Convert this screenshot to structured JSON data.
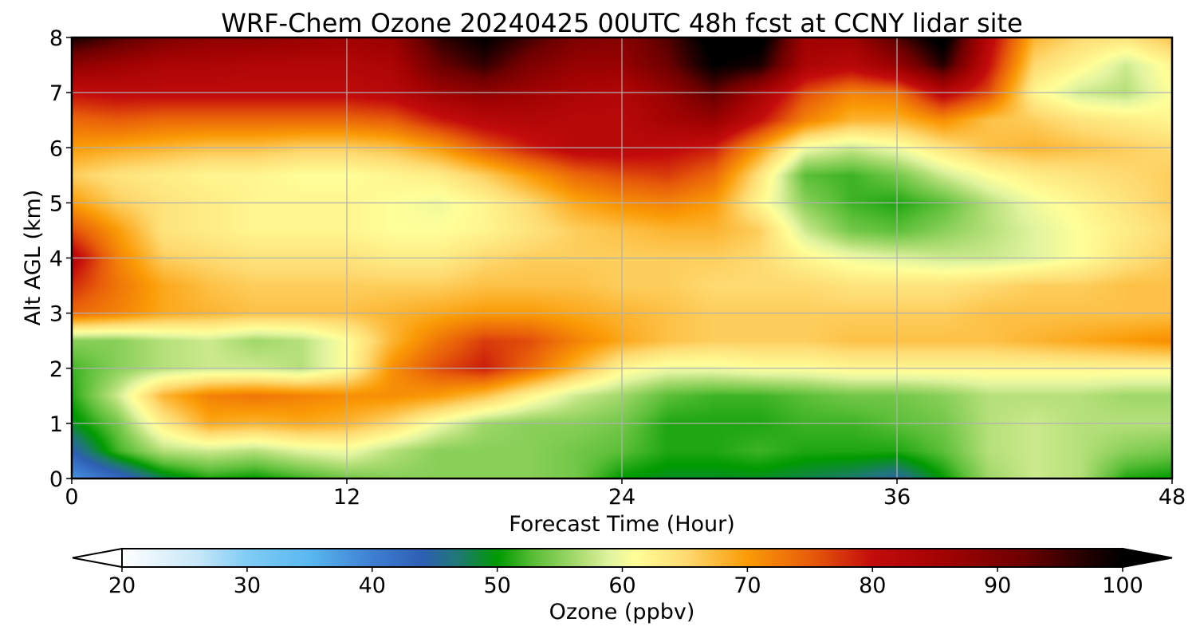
{
  "chart_data": {
    "type": "heatmap",
    "title": "WRF-Chem Ozone  20240425 00UTC 48h fcst at CCNY lidar site",
    "xlabel": "Forecast Time (Hour)",
    "ylabel": "Alt AGL (km)",
    "xlim": [
      0,
      48
    ],
    "ylim": [
      0,
      8
    ],
    "xticks": [
      0,
      12,
      24,
      36,
      48
    ],
    "yticks": [
      0,
      1,
      2,
      3,
      4,
      5,
      6,
      7,
      8
    ],
    "grid": true,
    "x": [
      0,
      2,
      4,
      6,
      8,
      10,
      12,
      14,
      16,
      18,
      20,
      22,
      24,
      26,
      28,
      30,
      32,
      34,
      36,
      38,
      40,
      42,
      44,
      46,
      48
    ],
    "y": [
      0,
      0.5,
      1,
      1.5,
      2,
      2.5,
      3,
      3.5,
      4,
      4.5,
      5,
      5.5,
      6,
      6.5,
      7,
      7.5,
      8
    ],
    "z": [
      [
        38,
        42,
        48,
        51,
        50,
        52,
        54,
        55,
        55,
        55,
        55,
        54,
        50,
        49,
        49,
        49,
        48,
        47,
        45,
        50,
        56,
        58,
        57,
        51,
        50
      ],
      [
        44,
        52,
        57,
        58,
        57,
        59,
        60,
        57,
        55,
        55,
        55,
        54,
        53,
        51,
        51,
        52,
        51,
        51,
        51,
        53,
        57,
        58,
        57,
        55,
        54
      ],
      [
        49,
        54,
        63,
        69,
        68,
        69,
        68,
        65,
        60,
        56,
        55,
        55,
        54,
        51,
        51,
        51,
        52,
        52,
        53,
        54,
        57,
        58,
        57,
        57,
        57
      ],
      [
        51,
        58,
        68,
        72,
        73,
        72,
        71,
        71,
        70,
        67,
        62,
        58,
        56,
        53,
        52,
        52,
        53,
        54,
        54,
        55,
        57,
        57,
        57,
        56,
        56
      ],
      [
        52,
        55,
        57,
        58,
        58,
        57,
        61,
        71,
        76,
        79,
        74,
        68,
        62,
        60,
        60,
        61,
        61,
        62,
        62,
        62,
        62,
        62,
        62,
        62,
        62
      ],
      [
        55,
        55,
        57,
        58,
        56,
        57,
        61,
        68,
        73,
        77,
        76,
        72,
        69,
        67,
        66,
        66,
        66,
        67,
        67,
        67,
        67,
        68,
        69,
        70,
        71
      ],
      [
        74,
        72,
        69,
        68,
        67,
        67,
        67,
        68,
        69,
        70,
        70,
        69,
        68,
        67,
        66,
        66,
        66,
        66,
        66,
        66,
        67,
        67,
        67,
        67,
        67
      ],
      [
        78,
        73,
        69,
        67,
        66,
        66,
        66,
        66,
        66,
        67,
        67,
        67,
        66,
        66,
        65,
        65,
        65,
        64,
        64,
        64,
        65,
        66,
        66,
        67,
        67
      ],
      [
        82,
        72,
        66,
        65,
        64,
        64,
        64,
        63,
        63,
        65,
        66,
        66,
        66,
        66,
        66,
        65,
        62,
        60,
        59,
        58,
        58,
        59,
        61,
        64,
        66
      ],
      [
        76,
        70,
        64,
        63,
        62,
        62,
        62,
        61,
        61,
        62,
        64,
        66,
        67,
        68,
        68,
        66,
        58,
        54,
        53,
        55,
        57,
        59,
        61,
        63,
        65
      ],
      [
        70,
        66,
        64,
        63,
        62,
        62,
        62,
        61,
        60,
        62,
        65,
        69,
        71,
        72,
        70,
        62,
        55,
        52,
        51,
        53,
        57,
        60,
        62,
        64,
        66
      ],
      [
        66,
        64,
        63,
        62,
        62,
        61,
        61,
        62,
        63,
        66,
        70,
        74,
        76,
        77,
        74,
        64,
        53,
        52,
        54,
        58,
        61,
        63,
        64,
        65,
        66
      ],
      [
        70,
        69,
        68,
        67,
        67,
        66,
        66,
        67,
        70,
        75,
        79,
        82,
        82,
        81,
        79,
        70,
        60,
        58,
        60,
        64,
        67,
        68,
        67,
        66,
        65
      ],
      [
        74,
        75,
        74,
        74,
        74,
        74,
        74,
        75,
        79,
        82,
        83,
        82,
        82,
        85,
        87,
        80,
        72,
        68,
        68,
        71,
        67,
        66,
        64,
        63,
        62
      ],
      [
        80,
        81,
        81,
        81,
        81,
        81,
        81,
        82,
        86,
        88,
        86,
        84,
        83,
        87,
        93,
        85,
        76,
        72,
        73,
        82,
        76,
        62,
        58,
        57,
        61
      ],
      [
        88,
        86,
        84,
        84,
        83,
        83,
        83,
        84,
        92,
        96,
        90,
        87,
        87,
        92,
        100,
        98,
        84,
        82,
        87,
        97,
        80,
        65,
        62,
        58,
        62
      ],
      [
        98,
        94,
        90,
        88,
        88,
        87,
        86,
        87,
        96,
        100,
        95,
        90,
        89,
        94,
        102,
        102,
        86,
        86,
        94,
        102,
        82,
        68,
        65,
        64,
        67
      ]
    ],
    "colorbar": {
      "label": "Ozone  (ppbv)",
      "ticks": [
        20,
        30,
        40,
        50,
        60,
        70,
        80,
        90,
        100
      ],
      "range": [
        20,
        100
      ],
      "extend": "both",
      "orientation": "horizontal",
      "placement": "bottom",
      "colormap": [
        {
          "v": 20,
          "c": "#ffffff"
        },
        {
          "v": 26,
          "c": "#c8e8f8"
        },
        {
          "v": 30,
          "c": "#80ccf5"
        },
        {
          "v": 35,
          "c": "#5ab8f0"
        },
        {
          "v": 40,
          "c": "#3e7fd2"
        },
        {
          "v": 44,
          "c": "#2e5fb4"
        },
        {
          "v": 47,
          "c": "#1e7a70"
        },
        {
          "v": 50,
          "c": "#009a00"
        },
        {
          "v": 53,
          "c": "#5cbf38"
        },
        {
          "v": 57,
          "c": "#b6e07a"
        },
        {
          "v": 59,
          "c": "#e2f4a0"
        },
        {
          "v": 61,
          "c": "#ffff99"
        },
        {
          "v": 65,
          "c": "#fedb72"
        },
        {
          "v": 70,
          "c": "#fb9b06"
        },
        {
          "v": 75,
          "c": "#e85d0a"
        },
        {
          "v": 80,
          "c": "#c40c0c"
        },
        {
          "v": 86,
          "c": "#a00202"
        },
        {
          "v": 92,
          "c": "#6e0000"
        },
        {
          "v": 97,
          "c": "#240000"
        },
        {
          "v": 100,
          "c": "#000000"
        }
      ]
    }
  }
}
